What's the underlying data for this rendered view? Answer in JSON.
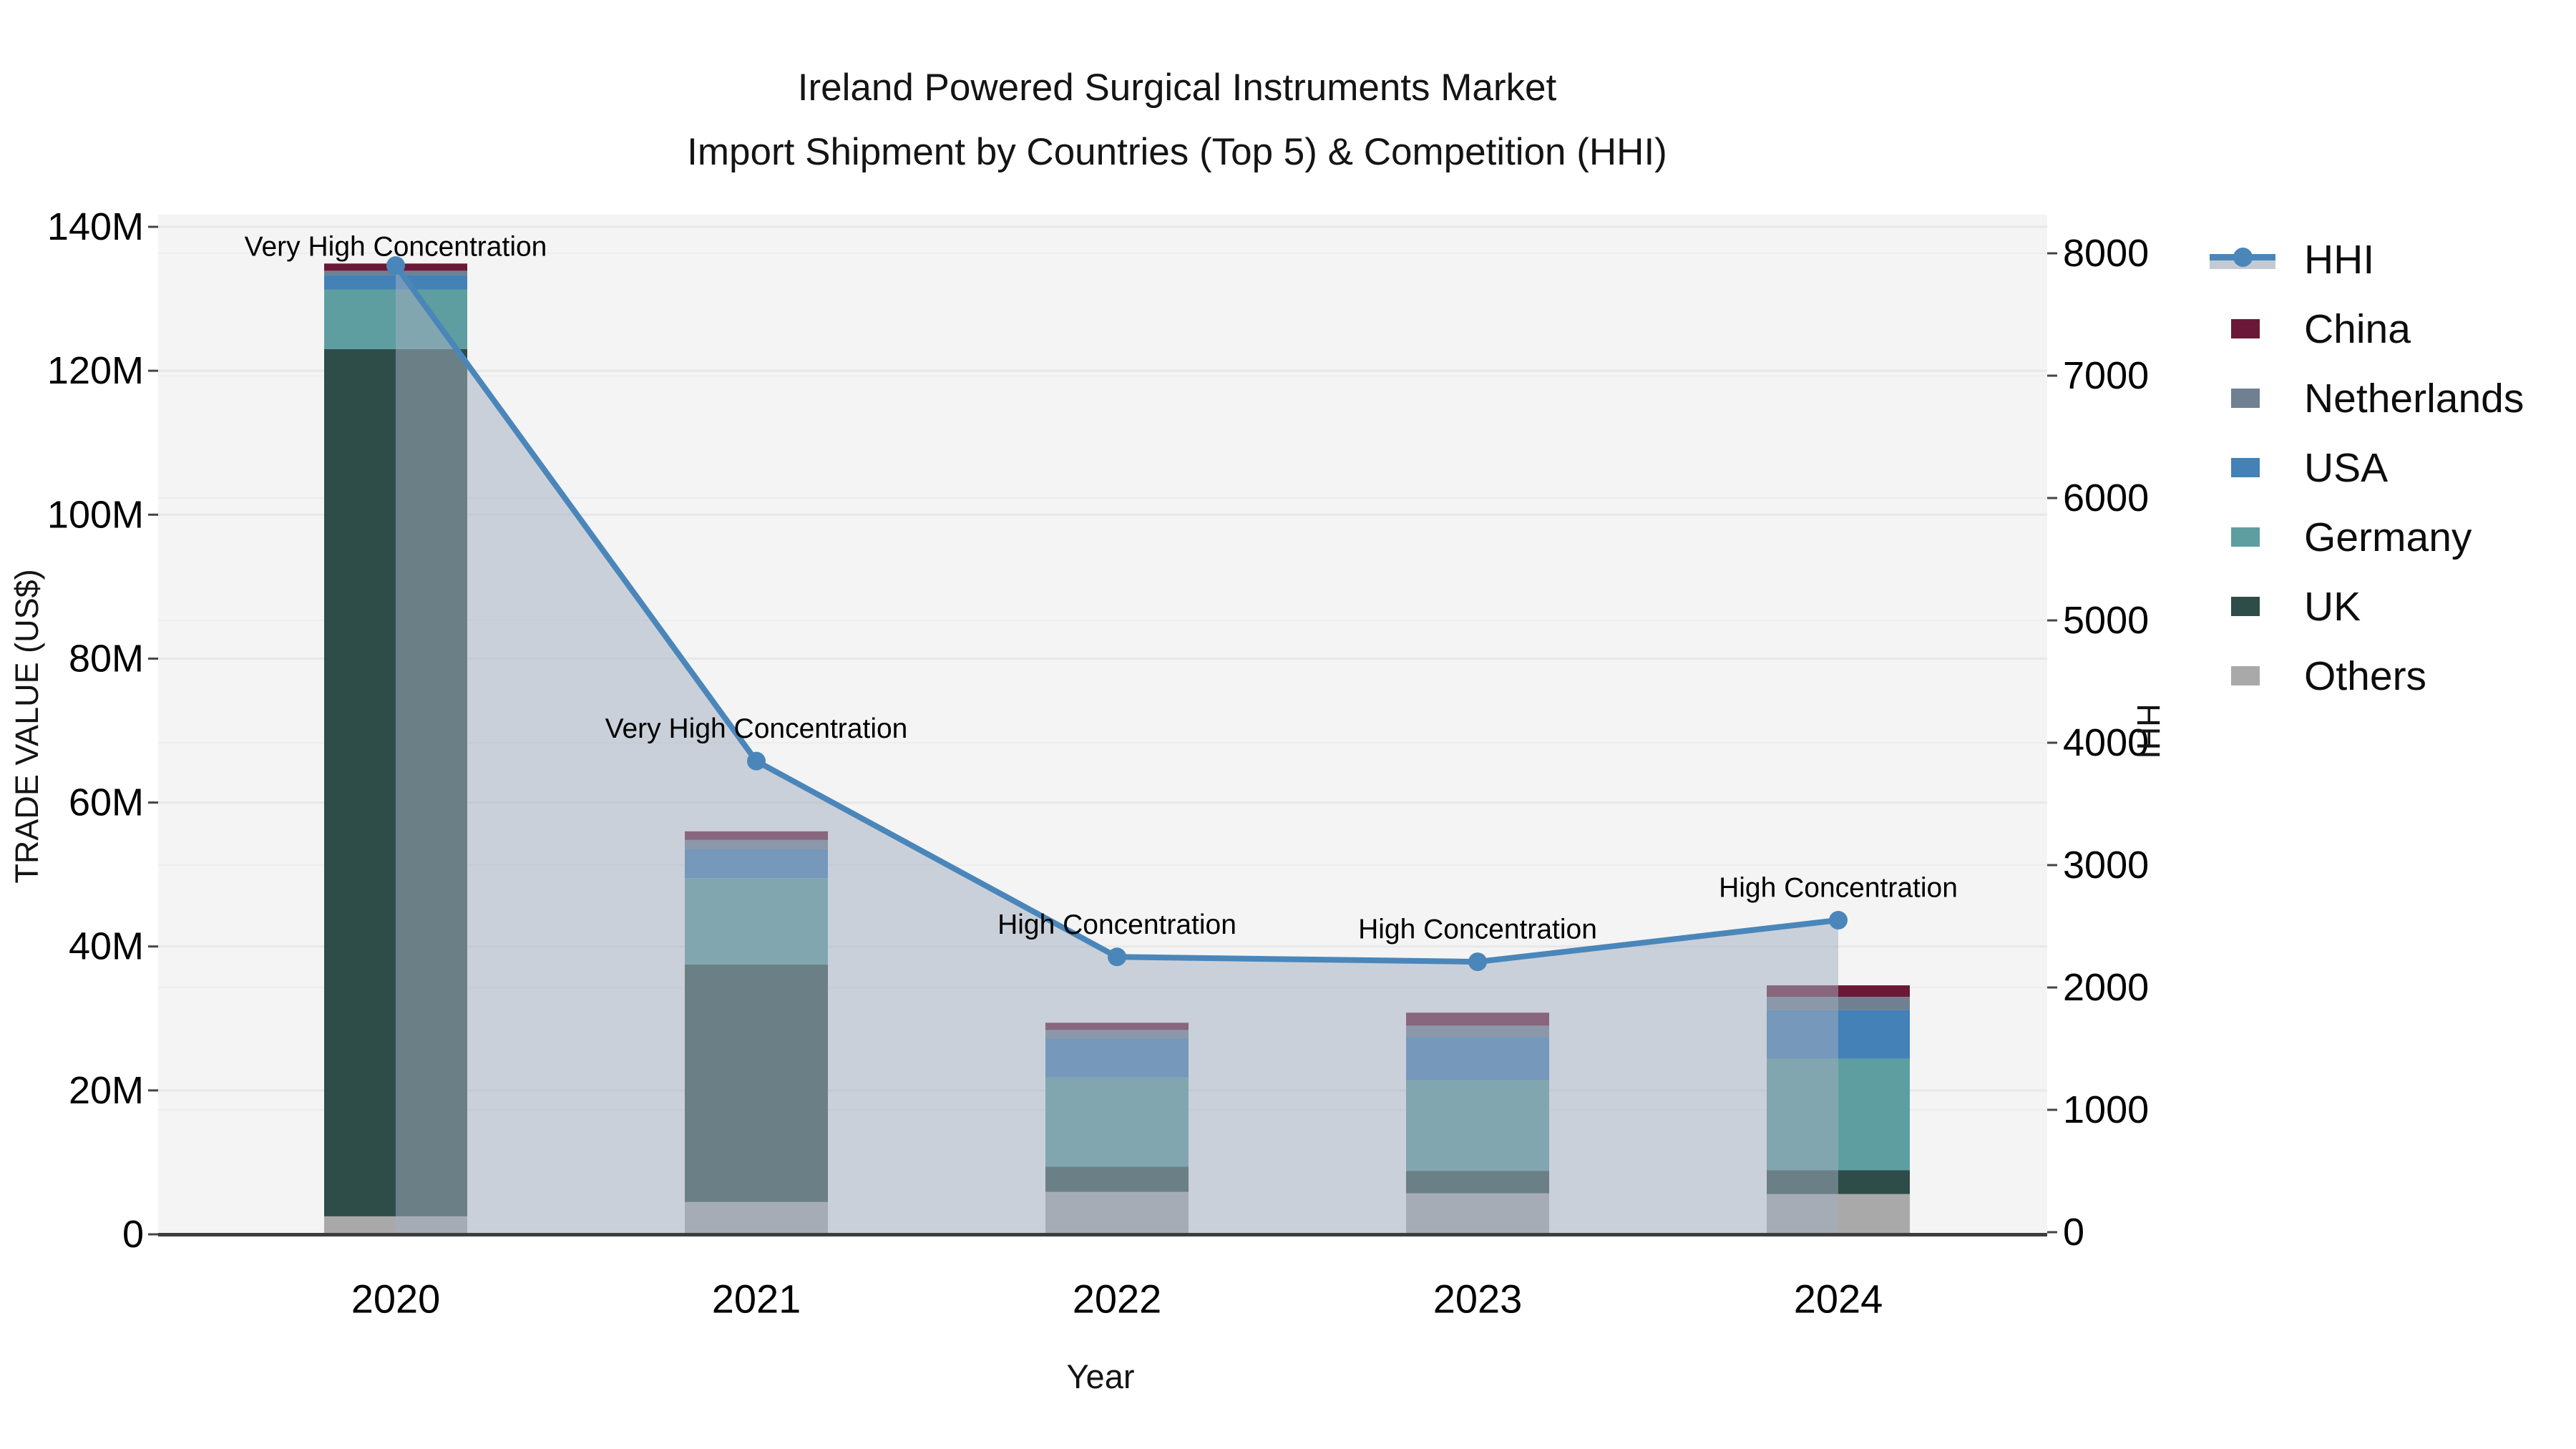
{
  "title": {
    "line1": "Ireland Powered Surgical Instruments Market",
    "line2": "Import Shipment by Countries (Top 5) & Competition (HHI)"
  },
  "axes": {
    "x_label": "Year",
    "y_left_label": "TRADE VALUE (US$)",
    "y_right_label": "HHI",
    "x_ticks": [
      "2020",
      "2021",
      "2022",
      "2023",
      "2024"
    ],
    "y_left_ticks": [
      "0",
      "20M",
      "40M",
      "60M",
      "80M",
      "100M",
      "120M",
      "140M"
    ],
    "y_right_ticks": [
      "0",
      "1000",
      "2000",
      "3000",
      "4000",
      "5000",
      "6000",
      "7000",
      "8000"
    ]
  },
  "legend": {
    "order": [
      "HHI",
      "China",
      "Netherlands",
      "USA",
      "Germany",
      "UK",
      "Others"
    ]
  },
  "chart_data": {
    "type": "stacked-bar+line",
    "title": "Ireland Powered Surgical Instruments Market — Import Shipment by Countries (Top 5) & Competition (HHI)",
    "categories": [
      "2020",
      "2021",
      "2022",
      "2023",
      "2024"
    ],
    "bar_value_unit": "million US$ (trade value, left axis)",
    "stack_order_bottom_to_top": [
      "Others",
      "UK",
      "Germany",
      "USA",
      "Netherlands",
      "China"
    ],
    "series": [
      {
        "name": "Others",
        "color": "#a9a9a9",
        "values": [
          2.5,
          4.5,
          5.9,
          5.7,
          5.6
        ]
      },
      {
        "name": "UK",
        "color": "#2e4c48",
        "values": [
          120.5,
          33.0,
          3.5,
          3.1,
          3.3
        ]
      },
      {
        "name": "Germany",
        "color": "#5f9ea0",
        "values": [
          8.3,
          12.0,
          12.4,
          12.6,
          15.5
        ]
      },
      {
        "name": "USA",
        "color": "#4381b6",
        "values": [
          2.0,
          4.0,
          5.4,
          6.0,
          6.8
        ]
      },
      {
        "name": "Netherlands",
        "color": "#6f8090",
        "values": [
          0.6,
          1.3,
          1.2,
          1.6,
          1.8
        ]
      },
      {
        "name": "China",
        "color": "#6b1837",
        "values": [
          1.0,
          1.2,
          1.0,
          1.8,
          1.6
        ]
      }
    ],
    "bar_totals_millions": [
      134.9,
      56.0,
      29.4,
      30.8,
      34.6
    ],
    "line_series": {
      "name": "HHI",
      "axis": "right",
      "color": "#4a86ba",
      "marker": "circle",
      "area_fill": "rgba(163,174,192,0.52)",
      "values": [
        7900,
        3850,
        2250,
        2210,
        2550
      ]
    },
    "annotations": [
      {
        "category": "2020",
        "text": "Very High Concentration"
      },
      {
        "category": "2021",
        "text": "Very High Concentration"
      },
      {
        "category": "2022",
        "text": "High Concentration"
      },
      {
        "category": "2023",
        "text": "High Concentration"
      },
      {
        "category": "2024",
        "text": "High Concentration"
      }
    ],
    "y_left": {
      "label": "TRADE VALUE (US$)",
      "min": 0,
      "max": 140,
      "tick_step": 20,
      "tick_suffix": "M"
    },
    "y_right": {
      "label": "HHI",
      "min": 0,
      "max": 8000,
      "tick_step": 1000
    },
    "x_label": "Year",
    "legend_position": "right",
    "grid": true,
    "plot_background": "#f4f4f4"
  }
}
